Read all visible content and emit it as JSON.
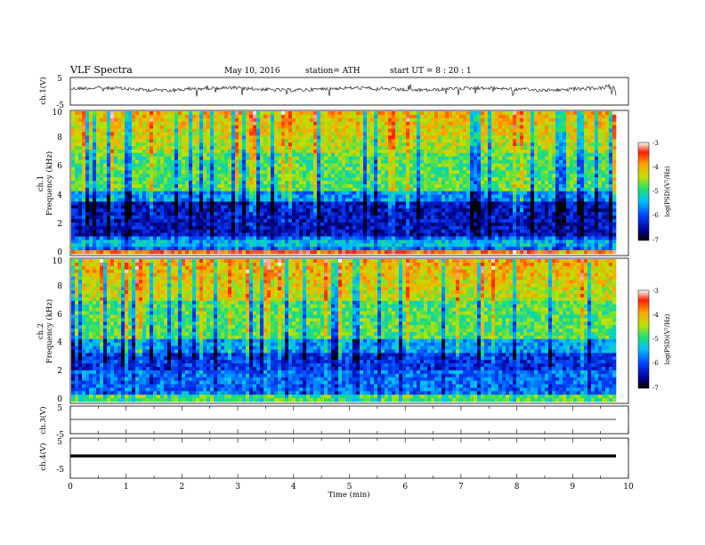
{
  "header": {
    "title": "VLF  Spectra",
    "date": "May 10, 2016",
    "station": "station= ATH",
    "start": "start  UT =   8  : 20 : 1"
  },
  "chart_data": [
    {
      "type": "line",
      "panel": "ch1-waveform",
      "ylabel": "ch.1(V)",
      "ylim": [
        -5,
        5
      ],
      "yticks": [
        "5",
        "-5"
      ],
      "xlim": [
        0,
        10
      ],
      "description_level": "noisy trace around 0 V with spikes"
    },
    {
      "type": "heatmap",
      "panel": "ch1-spectrogram",
      "ylabel_top": "ch.1",
      "ylabel": "Frequency  (kHz)",
      "ylim": [
        0,
        10
      ],
      "yticks": [
        "0",
        "2",
        "4",
        "6",
        "8",
        "10"
      ],
      "xlim": [
        0,
        9.8
      ],
      "colorbar": {
        "label": "log(PSD)(V²/Hz)",
        "range": [
          -7,
          -3
        ],
        "ticks": [
          "-3",
          "-4",
          "-5",
          "-6",
          "-7"
        ]
      }
    },
    {
      "type": "heatmap",
      "panel": "ch2-spectrogram",
      "ylabel_top": "ch.2",
      "ylabel": "Frequency  (kHz)",
      "ylim": [
        0,
        10
      ],
      "yticks": [
        "0",
        "2",
        "4",
        "6",
        "8",
        "10"
      ],
      "xlim": [
        0,
        9.8
      ],
      "colorbar": {
        "label": "log(PSD)(V²/Hz)",
        "range": [
          -7,
          -3
        ],
        "ticks": [
          "-3",
          "-4",
          "-5",
          "-6",
          "-7"
        ]
      }
    },
    {
      "type": "line",
      "panel": "ch3-waveform",
      "ylabel": "ch.3(V)",
      "ylim": [
        -5,
        5
      ],
      "yticks": [
        "5",
        "-5"
      ],
      "level": 0
    },
    {
      "type": "line",
      "panel": "ch4-waveform",
      "ylabel": "ch.4(V)",
      "ylim": [
        -5,
        5
      ],
      "yticks": [
        "5",
        "-5"
      ],
      "level": 0
    }
  ],
  "xaxis": {
    "label": "Time  (min)",
    "ticks": [
      "0",
      "1",
      "2",
      "3",
      "4",
      "5",
      "6",
      "7",
      "8",
      "9",
      "10"
    ]
  }
}
